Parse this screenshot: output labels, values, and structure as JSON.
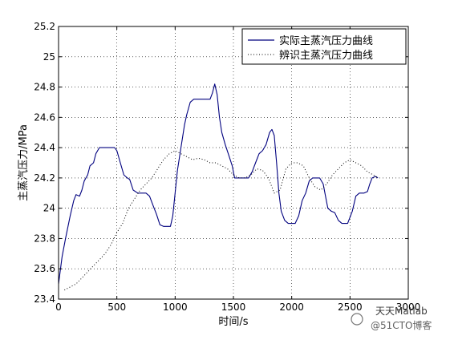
{
  "chart_data": {
    "type": "line",
    "title": "",
    "xlabel": "时间/s",
    "ylabel": "主蒸汽压力/MPa",
    "xlim": [
      0,
      3000
    ],
    "ylim": [
      23.4,
      25.2
    ],
    "x_ticks": [
      0,
      500,
      1000,
      1500,
      2000,
      2500,
      3000
    ],
    "y_ticks": [
      23.4,
      23.6,
      23.8,
      24,
      24.2,
      24.4,
      24.6,
      24.8,
      25,
      25.2
    ],
    "x_tick_labels": [
      "0",
      "500",
      "1000",
      "1500",
      "2000",
      "2500",
      "3000"
    ],
    "y_tick_labels": [
      "23.4",
      "23.6",
      "23.8",
      "24",
      "24.2",
      "24.4",
      "24.6",
      "24.8",
      "25",
      "25.2"
    ],
    "grid": true,
    "legend_position": "top-right",
    "series": [
      {
        "name": "实际主蒸汽压力曲线",
        "style": "solid",
        "color": "#00007f",
        "points": [
          [
            0,
            23.5
          ],
          [
            30,
            23.68
          ],
          [
            60,
            23.8
          ],
          [
            100,
            23.95
          ],
          [
            130,
            24.05
          ],
          [
            150,
            24.09
          ],
          [
            180,
            24.08
          ],
          [
            200,
            24.12
          ],
          [
            220,
            24.18
          ],
          [
            250,
            24.22
          ],
          [
            270,
            24.28
          ],
          [
            300,
            24.3
          ],
          [
            320,
            24.36
          ],
          [
            350,
            24.4
          ],
          [
            400,
            24.4
          ],
          [
            450,
            24.4
          ],
          [
            480,
            24.4
          ],
          [
            500,
            24.38
          ],
          [
            530,
            24.3
          ],
          [
            560,
            24.22
          ],
          [
            590,
            24.2
          ],
          [
            610,
            24.19
          ],
          [
            640,
            24.12
          ],
          [
            680,
            24.1
          ],
          [
            720,
            24.1
          ],
          [
            750,
            24.1
          ],
          [
            780,
            24.08
          ],
          [
            810,
            24.02
          ],
          [
            840,
            23.96
          ],
          [
            870,
            23.89
          ],
          [
            900,
            23.88
          ],
          [
            930,
            23.88
          ],
          [
            960,
            23.88
          ],
          [
            980,
            23.95
          ],
          [
            1000,
            24.1
          ],
          [
            1020,
            24.25
          ],
          [
            1050,
            24.4
          ],
          [
            1080,
            24.55
          ],
          [
            1100,
            24.62
          ],
          [
            1130,
            24.7
          ],
          [
            1160,
            24.72
          ],
          [
            1200,
            24.72
          ],
          [
            1250,
            24.72
          ],
          [
            1300,
            24.72
          ],
          [
            1320,
            24.76
          ],
          [
            1340,
            24.82
          ],
          [
            1360,
            24.75
          ],
          [
            1380,
            24.6
          ],
          [
            1400,
            24.5
          ],
          [
            1430,
            24.42
          ],
          [
            1460,
            24.35
          ],
          [
            1490,
            24.28
          ],
          [
            1510,
            24.2
          ],
          [
            1540,
            24.2
          ],
          [
            1580,
            24.2
          ],
          [
            1630,
            24.2
          ],
          [
            1660,
            24.24
          ],
          [
            1690,
            24.3
          ],
          [
            1720,
            24.36
          ],
          [
            1750,
            24.38
          ],
          [
            1780,
            24.42
          ],
          [
            1810,
            24.5
          ],
          [
            1830,
            24.52
          ],
          [
            1850,
            24.48
          ],
          [
            1870,
            24.3
          ],
          [
            1890,
            24.1
          ],
          [
            1910,
            23.98
          ],
          [
            1940,
            23.92
          ],
          [
            1970,
            23.9
          ],
          [
            2000,
            23.9
          ],
          [
            2030,
            23.9
          ],
          [
            2060,
            23.95
          ],
          [
            2090,
            24.05
          ],
          [
            2120,
            24.1
          ],
          [
            2150,
            24.18
          ],
          [
            2180,
            24.2
          ],
          [
            2210,
            24.2
          ],
          [
            2240,
            24.2
          ],
          [
            2270,
            24.16
          ],
          [
            2290,
            24.08
          ],
          [
            2310,
            24.0
          ],
          [
            2340,
            23.98
          ],
          [
            2370,
            23.97
          ],
          [
            2400,
            23.92
          ],
          [
            2430,
            23.9
          ],
          [
            2480,
            23.9
          ],
          [
            2520,
            23.98
          ],
          [
            2550,
            24.08
          ],
          [
            2580,
            24.1
          ],
          [
            2620,
            24.1
          ],
          [
            2650,
            24.11
          ],
          [
            2670,
            24.16
          ],
          [
            2690,
            24.2
          ],
          [
            2720,
            24.21
          ],
          [
            2740,
            24.2
          ]
        ]
      },
      {
        "name": "辨识主蒸汽压力曲线",
        "style": "dotted",
        "color": "#000000",
        "points": [
          [
            50,
            23.46
          ],
          [
            100,
            23.48
          ],
          [
            150,
            23.5
          ],
          [
            200,
            23.54
          ],
          [
            250,
            23.58
          ],
          [
            300,
            23.62
          ],
          [
            350,
            23.66
          ],
          [
            400,
            23.7
          ],
          [
            450,
            23.76
          ],
          [
            500,
            23.84
          ],
          [
            550,
            23.9
          ],
          [
            600,
            24.0
          ],
          [
            650,
            24.06
          ],
          [
            700,
            24.12
          ],
          [
            750,
            24.16
          ],
          [
            800,
            24.2
          ],
          [
            850,
            24.26
          ],
          [
            900,
            24.32
          ],
          [
            950,
            24.36
          ],
          [
            1000,
            24.38
          ],
          [
            1050,
            24.36
          ],
          [
            1100,
            24.34
          ],
          [
            1150,
            24.32
          ],
          [
            1200,
            24.33
          ],
          [
            1250,
            24.32
          ],
          [
            1300,
            24.3
          ],
          [
            1350,
            24.3
          ],
          [
            1400,
            24.28
          ],
          [
            1450,
            24.26
          ],
          [
            1500,
            24.22
          ],
          [
            1550,
            24.2
          ],
          [
            1600,
            24.2
          ],
          [
            1650,
            24.22
          ],
          [
            1700,
            24.26
          ],
          [
            1750,
            24.25
          ],
          [
            1800,
            24.2
          ],
          [
            1850,
            24.1
          ],
          [
            1900,
            24.12
          ],
          [
            1950,
            24.26
          ],
          [
            2000,
            24.3
          ],
          [
            2050,
            24.3
          ],
          [
            2100,
            24.28
          ],
          [
            2150,
            24.2
          ],
          [
            2200,
            24.14
          ],
          [
            2250,
            24.12
          ],
          [
            2300,
            24.16
          ],
          [
            2350,
            24.22
          ],
          [
            2400,
            24.26
          ],
          [
            2450,
            24.3
          ],
          [
            2500,
            24.32
          ],
          [
            2550,
            24.3
          ],
          [
            2600,
            24.28
          ],
          [
            2650,
            24.24
          ],
          [
            2700,
            24.22
          ],
          [
            2740,
            24.2
          ]
        ]
      }
    ]
  },
  "watermark": {
    "line1": "天天Matlab",
    "line2": "@51CTO博客"
  }
}
